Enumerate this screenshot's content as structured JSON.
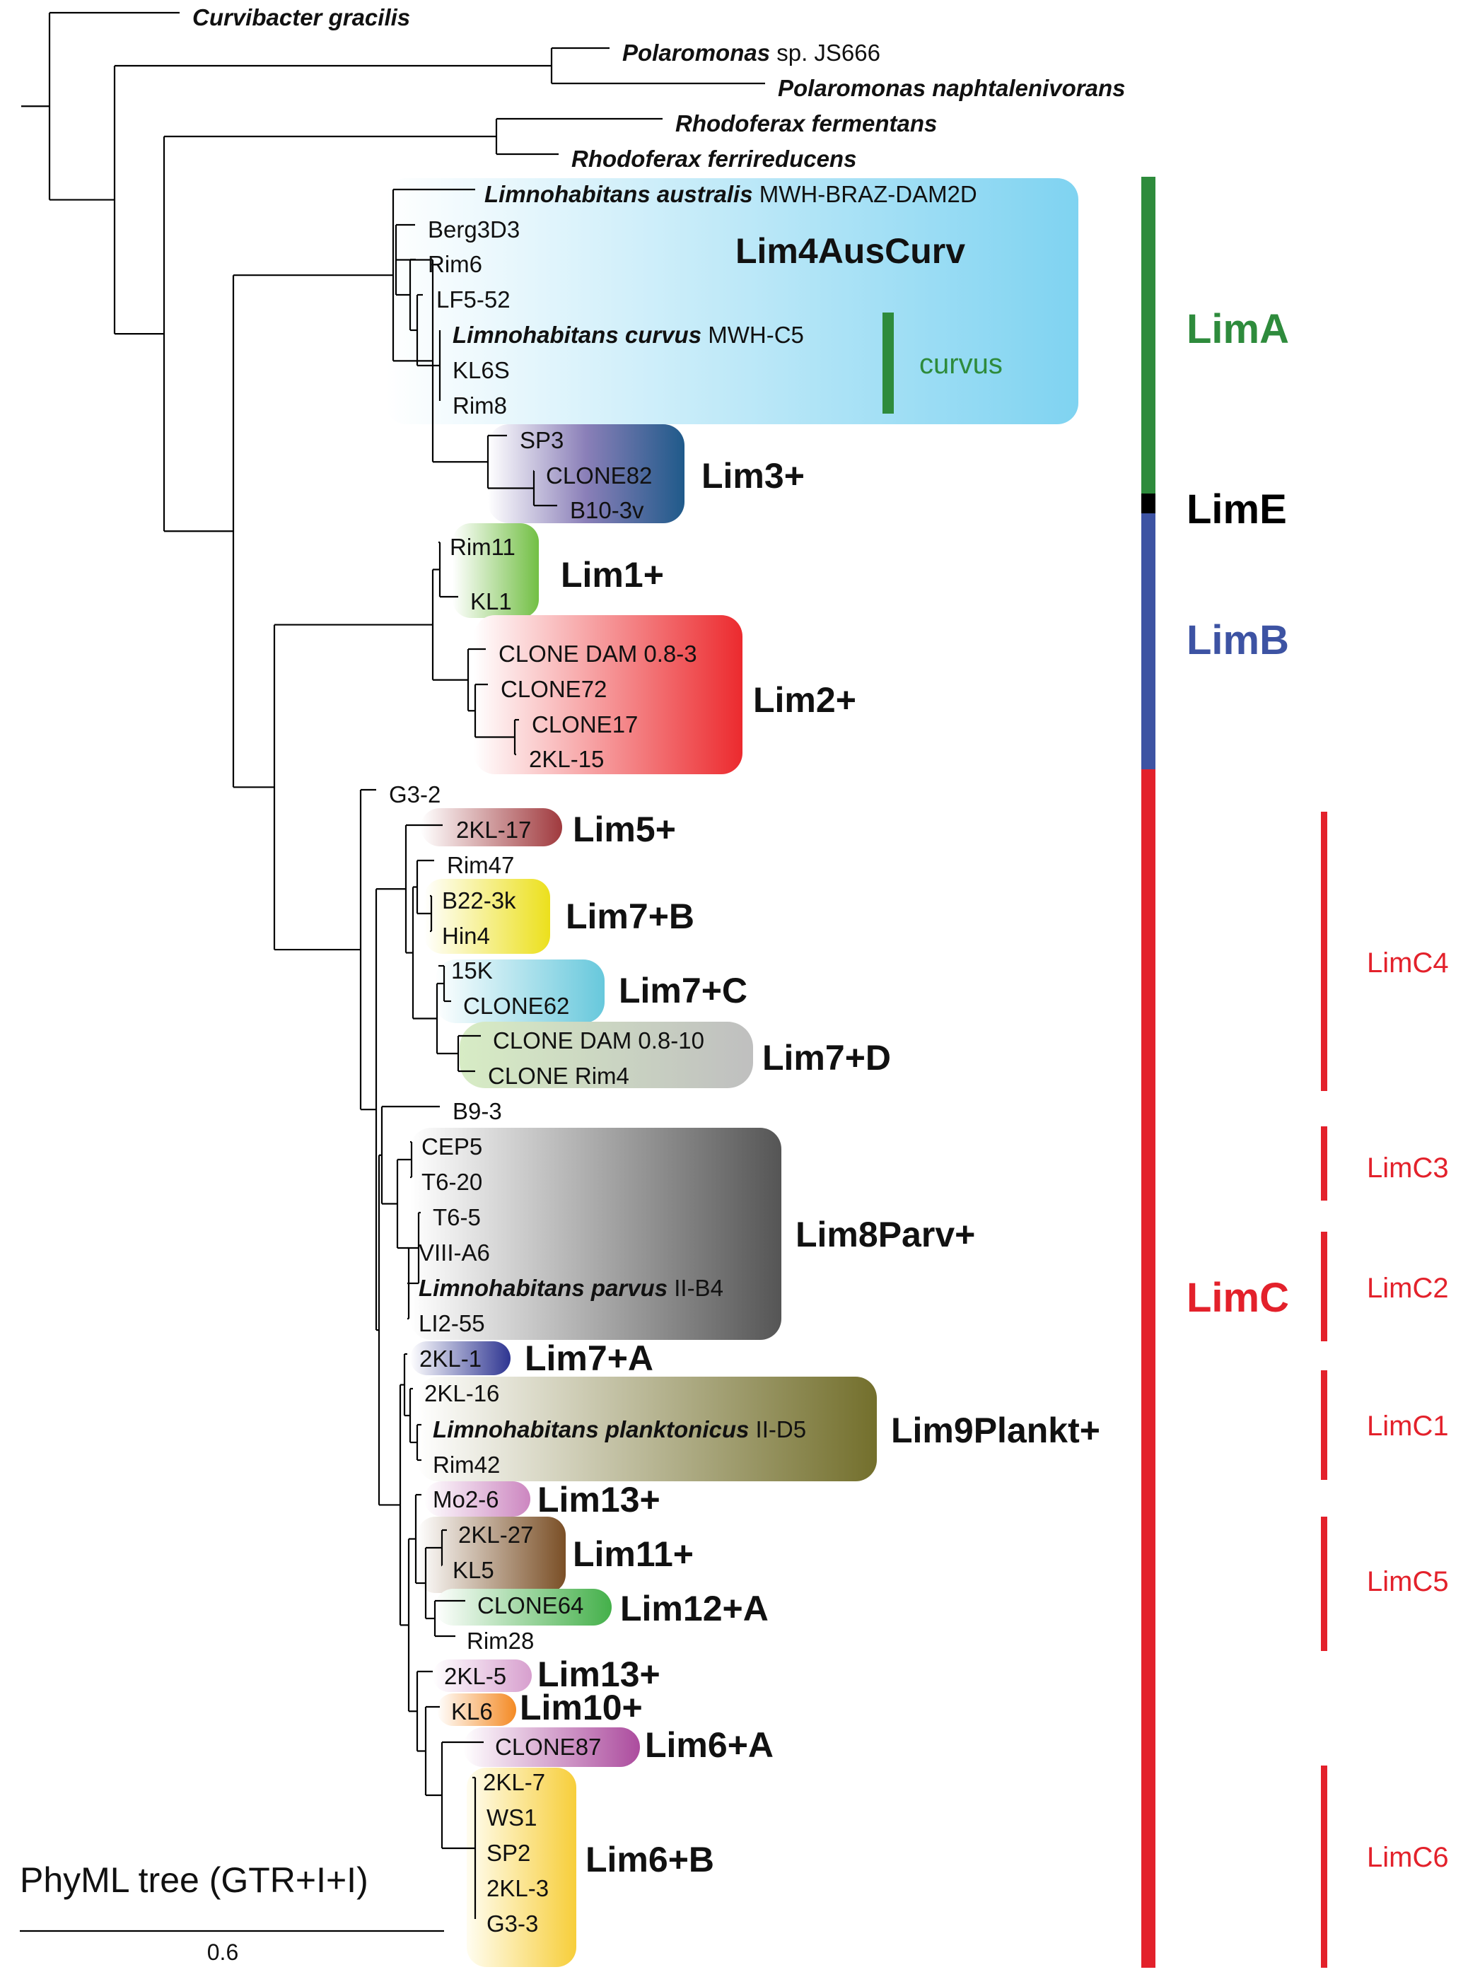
{
  "caption": "PhyML tree (GTR+I+I)",
  "scale_label": "0.6",
  "outgroup_leaves": [
    {
      "id": "cgr",
      "name": "Curvibacter gracilis",
      "strain": ""
    },
    {
      "id": "pjs",
      "name": "Polaromonas",
      "strain": "sp. JS666"
    },
    {
      "id": "pna",
      "name": "Polaromonas naphtalenivorans",
      "strain": ""
    },
    {
      "id": "rfe",
      "name": "Rhodoferax fermentans",
      "strain": ""
    },
    {
      "id": "rfr",
      "name": "Rhodoferax ferrireducens",
      "strain": ""
    }
  ],
  "leaves": [
    {
      "id": "aus",
      "name": "Limnohabitans australis",
      "strain": "MWH-BRAZ-DAM2D"
    },
    {
      "id": "b3d3",
      "label": "Berg3D3"
    },
    {
      "id": "rim6",
      "label": "Rim6"
    },
    {
      "id": "lf5",
      "label": "LF5-52"
    },
    {
      "id": "curv",
      "name": "Limnohabitans curvus",
      "strain": "MWH-C5"
    },
    {
      "id": "kl6s",
      "label": "KL6S"
    },
    {
      "id": "rim8",
      "label": "Rim8"
    },
    {
      "id": "sp3",
      "label": "SP3"
    },
    {
      "id": "c82",
      "label": "CLONE82"
    },
    {
      "id": "b10",
      "label": "B10-3v"
    },
    {
      "id": "rim11",
      "label": "Rim11"
    },
    {
      "id": "kl1",
      "label": "KL1"
    },
    {
      "id": "cdam3",
      "label": "CLONE DAM 0.8-3"
    },
    {
      "id": "c72",
      "label": "CLONE72"
    },
    {
      "id": "c17",
      "label": "CLONE17"
    },
    {
      "id": "kl15",
      "label": "2KL-15"
    },
    {
      "id": "g32",
      "label": "G3-2"
    },
    {
      "id": "kl17",
      "label": "2KL-17"
    },
    {
      "id": "rim47",
      "label": "Rim47"
    },
    {
      "id": "b22",
      "label": "B22-3k"
    },
    {
      "id": "hin4",
      "label": "Hin4"
    },
    {
      "id": "k15",
      "label": "15K"
    },
    {
      "id": "c62",
      "label": "CLONE62"
    },
    {
      "id": "cdam10",
      "label": "CLONE DAM 0.8-10"
    },
    {
      "id": "crim4",
      "label": "CLONE Rim4"
    },
    {
      "id": "b93",
      "label": "B9-3"
    },
    {
      "id": "cep5",
      "label": "CEP5"
    },
    {
      "id": "t620",
      "label": "T6-20"
    },
    {
      "id": "t65",
      "label": "T6-5"
    },
    {
      "id": "viii",
      "label": "VIII-A6"
    },
    {
      "id": "parv",
      "name": "Limnohabitans parvus",
      "strain": "II-B4"
    },
    {
      "id": "li2",
      "label": "LI2-55"
    },
    {
      "id": "kl1b",
      "label": "2KL-1"
    },
    {
      "id": "kl16",
      "label": "2KL-16"
    },
    {
      "id": "plank",
      "name": "Limnohabitans planktonicus",
      "strain": "II-D5"
    },
    {
      "id": "rim42",
      "label": "Rim42"
    },
    {
      "id": "mo2",
      "label": "Mo2-6"
    },
    {
      "id": "kl27",
      "label": "2KL-27"
    },
    {
      "id": "kl5",
      "label": "KL5"
    },
    {
      "id": "c64",
      "label": "CLONE64"
    },
    {
      "id": "rim28",
      "label": "Rim28"
    },
    {
      "id": "kl5b",
      "label": "2KL-5"
    },
    {
      "id": "kl6",
      "label": "KL6"
    },
    {
      "id": "c87",
      "label": "CLONE87"
    },
    {
      "id": "kl7",
      "label": "2KL-7"
    },
    {
      "id": "ws1",
      "label": "WS1"
    },
    {
      "id": "sp2",
      "label": "SP2"
    },
    {
      "id": "kl3",
      "label": "2KL-3"
    },
    {
      "id": "g33",
      "label": "G3-3"
    }
  ],
  "clades": [
    {
      "id": "lim4",
      "label": "Lim4AusCurv",
      "color": "#7fd3f1"
    },
    {
      "id": "lim3",
      "label": "Lim3+",
      "color": "#1f5a8a"
    },
    {
      "id": "lim1",
      "label": "Lim1+",
      "color": "#72bf44"
    },
    {
      "id": "lim2",
      "label": "Lim2+",
      "color": "#ec2a2e"
    },
    {
      "id": "lim5",
      "label": "Lim5+",
      "color": "#a03a3e"
    },
    {
      "id": "lim7b",
      "label": "Lim7+B",
      "color": "#ece01c"
    },
    {
      "id": "lim7c",
      "label": "Lim7+C",
      "color": "#67c8dc"
    },
    {
      "id": "lim7d",
      "label": "Lim7+D",
      "color": "#c2c8c6"
    },
    {
      "id": "lim8",
      "label": "Lim8Parv+",
      "color": "#5e5e5e"
    },
    {
      "id": "lim7a",
      "label": "Lim7+A",
      "color": "#2e3591"
    },
    {
      "id": "lim9",
      "label": "Lim9Plankt+",
      "color": "#7d7a34"
    },
    {
      "id": "lim13a",
      "label": "Lim13+",
      "color": "#cc86c0"
    },
    {
      "id": "lim11",
      "label": "Lim11+",
      "color": "#7a4f26"
    },
    {
      "id": "lim12",
      "label": "Lim12+A",
      "color": "#44b04a"
    },
    {
      "id": "lim13b",
      "label": "Lim13+",
      "color": "#d79fce"
    },
    {
      "id": "lim10",
      "label": "Lim10+",
      "color": "#f48a24"
    },
    {
      "id": "lim6a",
      "label": "Lim6+A",
      "color": "#ac4c9e"
    },
    {
      "id": "lim6b",
      "label": "Lim6+B",
      "color": "#f7ce3a"
    }
  ],
  "subgroup": {
    "label": "curvus",
    "color": "#2e8b3c"
  },
  "lineages": [
    {
      "id": "lima",
      "label": "LimA",
      "color": "#2e8b3c"
    },
    {
      "id": "lime",
      "label": "LimE",
      "color": "#000000"
    },
    {
      "id": "limb",
      "label": "LimB",
      "color": "#3d53a3"
    },
    {
      "id": "limc",
      "label": "LimC",
      "color": "#e3212b"
    }
  ],
  "subclusters": [
    {
      "id": "c4",
      "label": "LimC4",
      "color": "#e3212b"
    },
    {
      "id": "c3",
      "label": "LimC3",
      "color": "#e3212b"
    },
    {
      "id": "c2",
      "label": "LimC2",
      "color": "#e3212b"
    },
    {
      "id": "c1",
      "label": "LimC1",
      "color": "#e3212b"
    },
    {
      "id": "c5",
      "label": "LimC5",
      "color": "#e3212b"
    },
    {
      "id": "c6",
      "label": "LimC6",
      "color": "#e3212b"
    }
  ]
}
